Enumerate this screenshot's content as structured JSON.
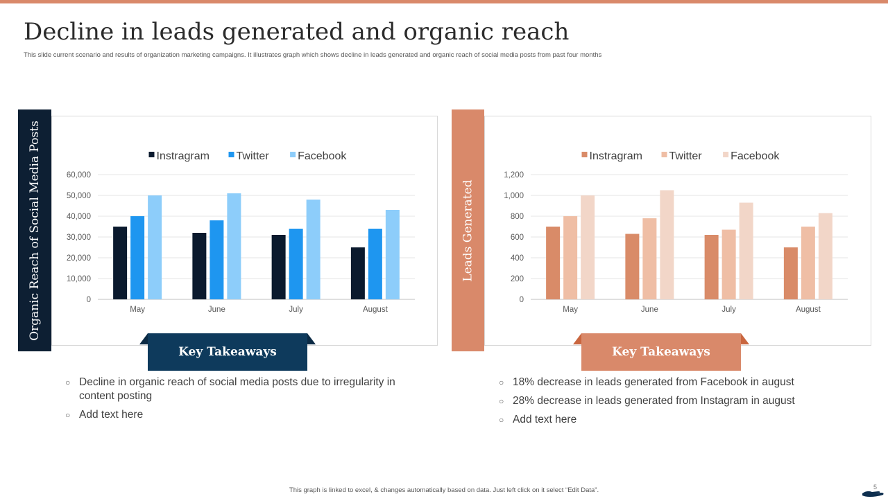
{
  "title": "Decline in leads generated and organic reach",
  "subtitle": "This slide current scenario and results of organization marketing  campaigns. It illustrates graph which shows decline in leads generated and organic reach of social media posts from past four months",
  "left_panel": {
    "side_label": "Organic Reach of Social Media Posts",
    "takeaways_label": "Key Takeaways",
    "bullets": [
      "Decline in organic reach of social media posts due to irregularity in content posting",
      "Add text here"
    ],
    "tab_color": "#0d1f33",
    "banner_color": "#0e3a5c"
  },
  "right_panel": {
    "side_label": "Leads Generated",
    "takeaways_label": "Key Takeaways",
    "bullets": [
      "18% decrease in leads generated from Facebook in august",
      "28% decrease in leads generated from Instagram  in august",
      "Add text here"
    ],
    "tab_color": "#d9896a",
    "banner_color": "#d9896a"
  },
  "chart_data": [
    {
      "type": "bar",
      "categories": [
        "May",
        "June",
        "July",
        "August"
      ],
      "series": [
        {
          "name": "Instragram",
          "values": [
            35000,
            32000,
            31000,
            25000
          ],
          "color": "#0b1a2e"
        },
        {
          "name": "Twitter",
          "values": [
            40000,
            38000,
            34000,
            34000
          ],
          "color": "#1e96f0"
        },
        {
          "name": "Facebook",
          "values": [
            50000,
            51000,
            48000,
            43000
          ],
          "color": "#8dcdfa"
        }
      ],
      "yticks": [
        "0",
        "10,000",
        "20,000",
        "30,000",
        "40,000",
        "50,000",
        "60,000"
      ],
      "ylim": [
        0,
        60000
      ],
      "legend": "top",
      "grid": true
    },
    {
      "type": "bar",
      "categories": [
        "May",
        "June",
        "July",
        "August"
      ],
      "series": [
        {
          "name": "Instragram",
          "values": [
            700,
            630,
            620,
            500
          ],
          "color": "#d98b68"
        },
        {
          "name": "Twitter",
          "values": [
            800,
            780,
            670,
            700
          ],
          "color": "#efbea5"
        },
        {
          "name": "Facebook",
          "values": [
            1000,
            1050,
            930,
            830
          ],
          "color": "#f2d6c8"
        }
      ],
      "yticks": [
        "0",
        "200",
        "400",
        "600",
        "800",
        "1,000",
        "1,200"
      ],
      "ylim": [
        0,
        1200
      ],
      "legend": "top",
      "grid": true
    }
  ],
  "footer": "This graph is linked to excel, & changes automatically based on data. Just left click on it select “Edit Data”.",
  "page_number": "5",
  "logo_icon": "hand-icon"
}
